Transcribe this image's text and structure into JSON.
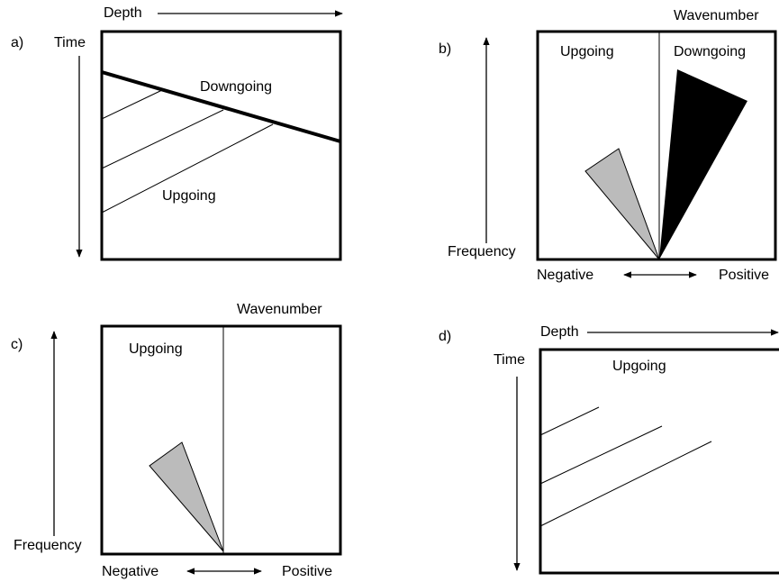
{
  "panels": [
    {
      "label": "a)",
      "x_axis": "Depth",
      "y_axis": "Time",
      "texts": [
        "Downgoing",
        "Upgoing"
      ]
    },
    {
      "label": "b)",
      "top": "Wavenumber",
      "y_axis": "Frequency",
      "texts": [
        "Upgoing",
        "Downgoing"
      ],
      "left": "Negative",
      "right": "Positive"
    },
    {
      "label": "c)",
      "top": "Wavenumber",
      "y_axis": "Frequency",
      "texts": [
        "Upgoing"
      ],
      "left": "Negative",
      "right": "Positive"
    },
    {
      "label": "d)",
      "x_axis": "Depth",
      "y_axis": "Time",
      "texts": [
        "Upgoing"
      ]
    }
  ]
}
